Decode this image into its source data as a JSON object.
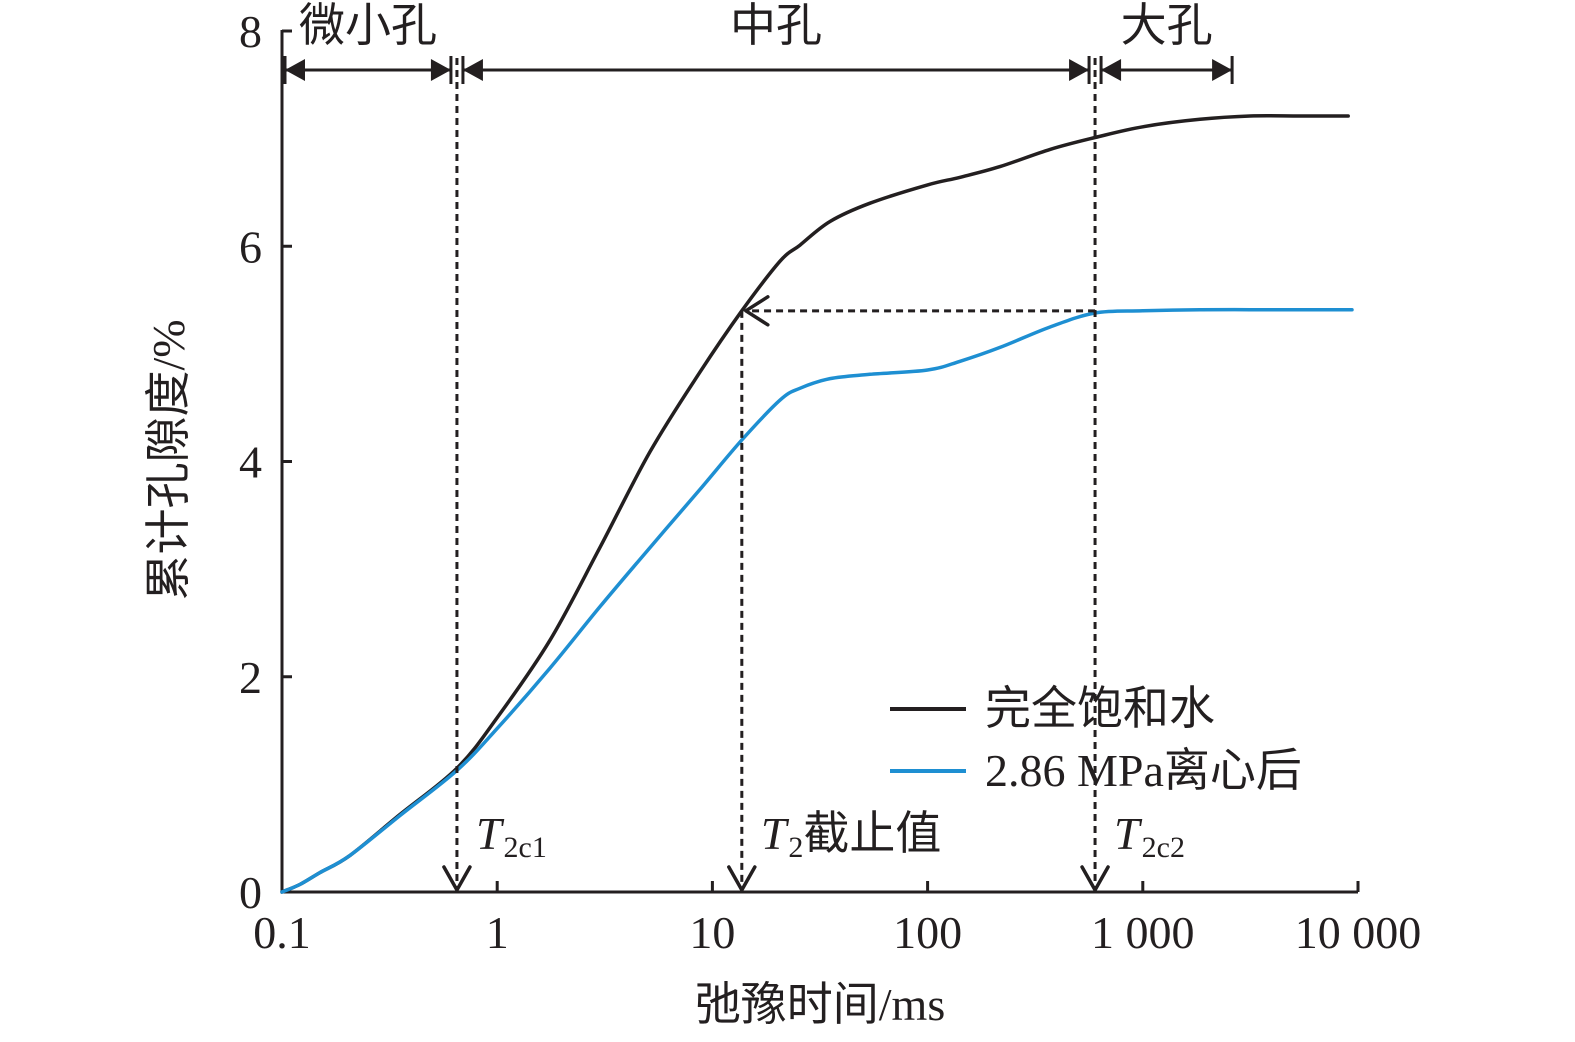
{
  "chart_data": {
    "type": "line",
    "xscale": "log",
    "xlabel": "弛豫时间/ms",
    "ylabel": "累计孔隙度/%",
    "xlim": [
      0.1,
      10000
    ],
    "ylim": [
      0,
      8
    ],
    "x_ticks": {
      "values": [
        0.1,
        1,
        10,
        100,
        1000,
        10000
      ],
      "labels": [
        "0.1",
        "1",
        "10",
        "100",
        "1 000",
        "10 000"
      ]
    },
    "y_ticks": {
      "values": [
        0,
        2,
        4,
        6,
        8
      ],
      "labels": [
        "0",
        "2",
        "4",
        "6",
        "8"
      ]
    },
    "grid": false,
    "legend_position": "bottom-right",
    "series": [
      {
        "name": "完全饱和水",
        "color": "#231f20",
        "x": [
          0.1,
          0.121,
          0.15,
          0.207,
          0.353,
          0.65,
          1.0,
          1.76,
          3.0,
          5.13,
          8.75,
          13.7,
          20.6,
          25.5,
          35.2,
          54,
          100,
          141,
          217,
          371,
          600,
          1000,
          1845,
          3150,
          5370,
          9000
        ],
        "y": [
          0,
          0.07,
          0.18,
          0.34,
          0.72,
          1.15,
          1.62,
          2.34,
          3.2,
          4.09,
          4.83,
          5.4,
          5.86,
          6.01,
          6.23,
          6.4,
          6.57,
          6.64,
          6.74,
          6.9,
          7.01,
          7.11,
          7.18,
          7.21,
          7.21,
          7.21
        ]
      },
      {
        "name": "2.86 MPa离心后",
        "color": "#1e8fd2",
        "x": [
          0.1,
          0.121,
          0.15,
          0.207,
          0.353,
          0.65,
          1.0,
          1.76,
          3.0,
          5.13,
          8.75,
          13.7,
          20.6,
          25.5,
          35.2,
          54,
          100,
          141,
          217,
          371,
          600,
          1000,
          1845,
          3150,
          5370,
          9380
        ],
        "y": [
          0,
          0.07,
          0.18,
          0.34,
          0.71,
          1.13,
          1.52,
          2.08,
          2.65,
          3.2,
          3.74,
          4.2,
          4.57,
          4.68,
          4.77,
          4.81,
          4.85,
          4.93,
          5.06,
          5.25,
          5.38,
          5.4,
          5.41,
          5.41,
          5.41,
          5.41
        ]
      }
    ],
    "cutoffs": [
      {
        "value": 0.65,
        "label_main": "T",
        "label_sub": "2c1",
        "label_suffix": ""
      },
      {
        "value": 13.7,
        "label_main": "T",
        "label_sub": "2",
        "label_suffix": "截止值"
      },
      {
        "value": 600,
        "label_main": "T",
        "label_sub": "2c2",
        "label_suffix": ""
      }
    ],
    "pore_classes": [
      {
        "label": "微小孔",
        "range": [
          0.1,
          0.65
        ]
      },
      {
        "label": "中孔",
        "range": [
          0.65,
          600
        ]
      },
      {
        "label": "大孔",
        "range": [
          600,
          2600
        ]
      }
    ],
    "reference_arrow": {
      "y": 5.4,
      "from_x": 600,
      "to_x": 13.7
    }
  }
}
